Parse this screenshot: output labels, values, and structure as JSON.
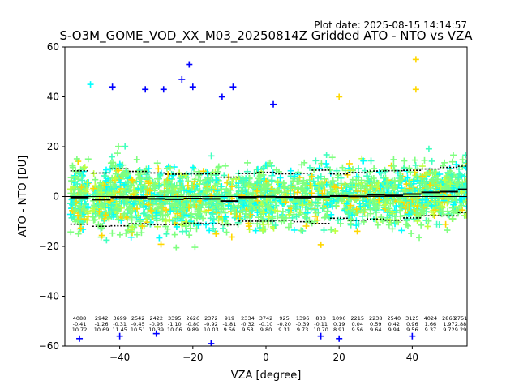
{
  "chart_data": {
    "type": "scatter",
    "plot_date": "Plot date: 2025-08-15 14:14:57",
    "title": "S-O3M_GOME_VOD_XX_M03_20250814Z Gridded ATO - NTO vs VZA",
    "xlabel": "VZA [degree]",
    "ylabel": "ATO - NTO [DU]",
    "xlim": [
      -55,
      55
    ],
    "ylim": [
      -60,
      60
    ],
    "xticks": [
      -40,
      -20,
      0,
      20,
      40
    ],
    "yticks": [
      -60,
      -40,
      -20,
      0,
      20,
      40,
      60
    ],
    "grid": false,
    "bins": [
      {
        "x": -51,
        "n": "4088",
        "mean": "-0.41",
        "sd": "10.72"
      },
      {
        "x": -45,
        "n": "2942",
        "mean": "-1.26",
        "sd": "10.69"
      },
      {
        "x": -40,
        "n": "3699",
        "mean": "-0.31",
        "sd": "11.45"
      },
      {
        "x": -35,
        "n": "2542",
        "mean": "-0.45",
        "sd": "10.51"
      },
      {
        "x": -30,
        "n": "2422",
        "mean": "-0.95",
        "sd": "10.39"
      },
      {
        "x": -25,
        "n": "3395",
        "mean": "-1.10",
        "sd": "10.06"
      },
      {
        "x": -20,
        "n": "2626",
        "mean": "-0.80",
        "sd": "9.89"
      },
      {
        "x": -15,
        "n": "2372",
        "mean": "-0.92",
        "sd": "10.03"
      },
      {
        "x": -10,
        "n": "919",
        "mean": "-1.81",
        "sd": "9.56"
      },
      {
        "x": -5,
        "n": "2334",
        "mean": "-0.32",
        "sd": "9.58"
      },
      {
        "x": 0,
        "n": "3742",
        "mean": "-0.10",
        "sd": "9.80"
      },
      {
        "x": 5,
        "n": "925",
        "mean": "-0.20",
        "sd": "9.31"
      },
      {
        "x": 10,
        "n": "1396",
        "mean": "-0.39",
        "sd": "9.73"
      },
      {
        "x": 15,
        "n": "833",
        "mean": "-0.11",
        "sd": "10.70"
      },
      {
        "x": 20,
        "n": "1096",
        "mean": "0.19",
        "sd": "8.91"
      },
      {
        "x": 25,
        "n": "2215",
        "mean": "0.04",
        "sd": "9.56"
      },
      {
        "x": 30,
        "n": "2238",
        "mean": "0.59",
        "sd": "9.64"
      },
      {
        "x": 35,
        "n": "2540",
        "mean": "0.42",
        "sd": "9.94"
      },
      {
        "x": 40,
        "n": "3125",
        "mean": "0.96",
        "sd": "9.56"
      },
      {
        "x": 45,
        "n": "4024",
        "mean": "1.66",
        "sd": "9.37"
      },
      {
        "x": 50,
        "n": "2860",
        "mean": "1.97",
        "sd": "9.72"
      },
      {
        "x": 55,
        "n": "2751",
        "mean": "2.88",
        "sd": "9.29"
      }
    ],
    "sample_points": [
      {
        "x": -48,
        "y": 45,
        "c": "#00ffff"
      },
      {
        "x": -42,
        "y": 44,
        "c": "#0000ff"
      },
      {
        "x": -33,
        "y": 43,
        "c": "#0000ff"
      },
      {
        "x": -28,
        "y": 43,
        "c": "#0000ff"
      },
      {
        "x": -23,
        "y": 47,
        "c": "#0000ff"
      },
      {
        "x": -21,
        "y": 53,
        "c": "#0000ff"
      },
      {
        "x": -20,
        "y": 44,
        "c": "#0000ff"
      },
      {
        "x": -12,
        "y": 40,
        "c": "#0000ff"
      },
      {
        "x": -9,
        "y": 44,
        "c": "#0000ff"
      },
      {
        "x": 2,
        "y": 37,
        "c": "#0000ff"
      },
      {
        "x": 41,
        "y": 55,
        "c": "#ffd700"
      },
      {
        "x": 41,
        "y": 43,
        "c": "#ffd700"
      },
      {
        "x": 20,
        "y": 40,
        "c": "#ffd700"
      },
      {
        "x": -51,
        "y": -57,
        "c": "#0000ff"
      },
      {
        "x": -40,
        "y": -56,
        "c": "#0000ff"
      },
      {
        "x": -30,
        "y": -55,
        "c": "#0000ff"
      },
      {
        "x": -15,
        "y": -59,
        "c": "#0000ff"
      },
      {
        "x": 15,
        "y": -56,
        "c": "#0000ff"
      },
      {
        "x": 20,
        "y": -57,
        "c": "#0000ff"
      },
      {
        "x": 40,
        "y": -56,
        "c": "#0000ff"
      }
    ],
    "palette": [
      "#7fff7f",
      "#00ffff",
      "#40ffbf",
      "#ffd700",
      "#0000ff",
      "#0050ff",
      "#bfff40"
    ]
  }
}
